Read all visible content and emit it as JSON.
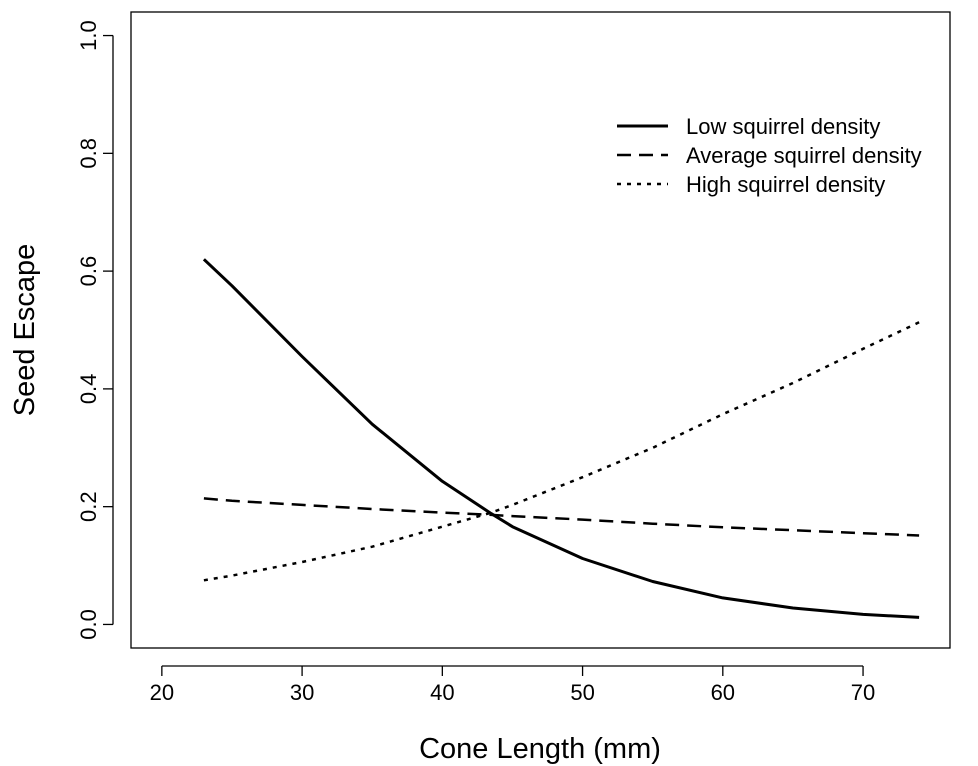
{
  "chart_data": {
    "type": "line",
    "title": "",
    "xlabel": "Cone Length (mm)",
    "ylabel": "Seed Escape",
    "xlim": [
      17.8,
      76.2
    ],
    "ylim": [
      -0.04,
      1.04
    ],
    "x_ticks": [
      20,
      30,
      40,
      50,
      60,
      70
    ],
    "y_ticks": [
      0.0,
      0.2,
      0.4,
      0.6,
      0.8,
      1.0
    ],
    "x_tick_labels": [
      "20",
      "30",
      "40",
      "50",
      "60",
      "70"
    ],
    "y_tick_labels": [
      "0.0",
      "0.2",
      "0.4",
      "0.6",
      "0.8",
      "1.0"
    ],
    "grid": false,
    "legend_position": "top-right",
    "x": [
      23,
      25,
      30,
      35,
      40,
      43.5,
      45,
      50,
      55,
      60,
      65,
      70,
      74
    ],
    "series": [
      {
        "name": "Low squirrel density",
        "style": "solid",
        "values": [
          0.62,
          0.575,
          0.455,
          0.34,
          0.243,
          0.188,
          0.166,
          0.112,
          0.073,
          0.045,
          0.028,
          0.017,
          0.012
        ]
      },
      {
        "name": "Average squirrel density",
        "style": "dashed",
        "values": [
          0.214,
          0.21,
          0.203,
          0.196,
          0.19,
          0.186,
          0.184,
          0.178,
          0.171,
          0.165,
          0.16,
          0.155,
          0.151
        ]
      },
      {
        "name": "High squirrel density",
        "style": "dotted",
        "values": [
          0.075,
          0.083,
          0.106,
          0.132,
          0.166,
          0.19,
          0.203,
          0.25,
          0.3,
          0.357,
          0.41,
          0.468,
          0.513
        ]
      }
    ]
  }
}
